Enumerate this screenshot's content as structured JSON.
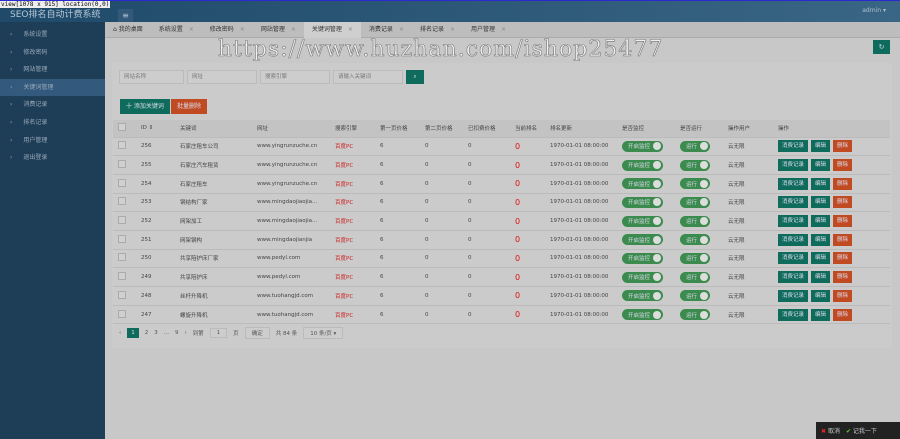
{
  "debug": "view[1078 x 915] location(0,0)",
  "app_title": "SEO排名自动计费系统",
  "user": "admin",
  "sidebar": [
    "系统设置",
    "修改密码",
    "网站管理",
    "关键词管理",
    "消费记录",
    "排名记录",
    "用户管理",
    "退出登录"
  ],
  "sidebar_active": 3,
  "tabs": [
    "我的桌面",
    "系统设置",
    "修改密码",
    "网站管理",
    "关键词管理",
    "消费记录",
    "排名记录",
    "用户管理"
  ],
  "tabs_active": 4,
  "search": {
    "placeholders": [
      "网站名称",
      "网址",
      "搜索引擎",
      "请输入关键词"
    ]
  },
  "actions": {
    "add": "十 添加关键词",
    "batch_delete": "批量删除"
  },
  "table": {
    "headers": [
      "ID",
      "关键词",
      "网址",
      "搜索引擎",
      "第一页价格",
      "第二页价格",
      "已扣费价格",
      "当前排名",
      "排名更新",
      "是否监控",
      "是否运行",
      "操作用户",
      "操作"
    ],
    "rows": [
      [
        "256",
        "石家庄租车公司",
        "www.yingrunzuche.cn",
        "百度PC",
        "6",
        "0",
        "0",
        "0",
        "1970-01-01 08:00:00",
        "开启监控",
        "运行",
        "云无限"
      ],
      [
        "255",
        "石家庄汽车租赁",
        "www.yingrunzuche.cn",
        "百度PC",
        "6",
        "0",
        "0",
        "0",
        "1970-01-01 08:00:00",
        "开启监控",
        "运行",
        "云无限"
      ],
      [
        "254",
        "石家庄租车",
        "www.yingrunzuche.cn",
        "百度PC",
        "6",
        "0",
        "0",
        "0",
        "1970-01-01 08:00:00",
        "开启监控",
        "运行",
        "云无限"
      ],
      [
        "253",
        "钢结构厂家",
        "www.mingdaojiaojia...",
        "百度PC",
        "6",
        "0",
        "0",
        "0",
        "1970-01-01 08:00:00",
        "开启监控",
        "运行",
        "云无限"
      ],
      [
        "252",
        "网架加工",
        "www.mingdaojiaojia...",
        "百度PC",
        "6",
        "0",
        "0",
        "0",
        "1970-01-01 08:00:00",
        "开启监控",
        "运行",
        "云无限"
      ],
      [
        "251",
        "网架钢构",
        "www.mingdaojianjia",
        "百度PC",
        "6",
        "0",
        "0",
        "0",
        "1970-01-01 08:00:00",
        "开启监控",
        "运行",
        "云无限"
      ],
      [
        "250",
        "共享陪护床厂家",
        "www.pedyl.com",
        "百度PC",
        "6",
        "0",
        "0",
        "0",
        "1970-01-01 08:00:00",
        "开启监控",
        "运行",
        "云无限"
      ],
      [
        "249",
        "共享陪护床",
        "www.pedyl.com",
        "百度PC",
        "6",
        "0",
        "0",
        "0",
        "1970-01-01 08:00:00",
        "开启监控",
        "运行",
        "云无限"
      ],
      [
        "248",
        "丝杆升降机",
        "www.tuohangjd.com",
        "百度PC",
        "6",
        "0",
        "0",
        "0",
        "1970-01-01 08:00:00",
        "开启监控",
        "运行",
        "云无限"
      ],
      [
        "247",
        "螺旋升降机",
        "www.tuohangjd.com",
        "百度PC",
        "6",
        "0",
        "0",
        "0",
        "1970-01-01 08:00:00",
        "开启监控",
        "运行",
        "云无限"
      ]
    ],
    "ops": [
      "消费记录",
      "编辑",
      "删除"
    ]
  },
  "pagination": {
    "prev": "‹",
    "pages": [
      "1",
      "2",
      "3",
      "...",
      "9"
    ],
    "current": "1",
    "next": "›",
    "goto": "到第",
    "page_input": "1",
    "page_unit": "页",
    "confirm": "确定",
    "total": "共 84 条",
    "per_page": "10 条/页"
  },
  "watermark": "https://www.huzhan.com/ishop25477",
  "guide": {
    "cancel": "取消",
    "ok": "记我一下"
  }
}
